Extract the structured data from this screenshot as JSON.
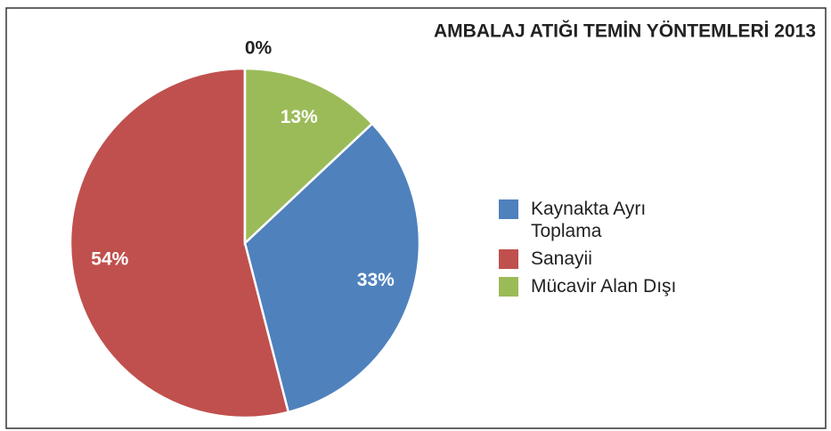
{
  "chart_data": {
    "type": "pie",
    "title": "AMBALAJ ATIĞI TEMİN YÖNTEMLERİ 2013",
    "categories": [
      "Kaynakta Ayrı Toplama",
      "Sanayii",
      null,
      "Mücavir Alan Dışı"
    ],
    "values": [
      33,
      54,
      0,
      13
    ],
    "value_labels": [
      "33%",
      "54%",
      "0%",
      "13%"
    ],
    "colors": [
      "#4f81bd",
      "#c0504d",
      "#8064a2",
      "#9bbb59"
    ],
    "legend": "right"
  }
}
